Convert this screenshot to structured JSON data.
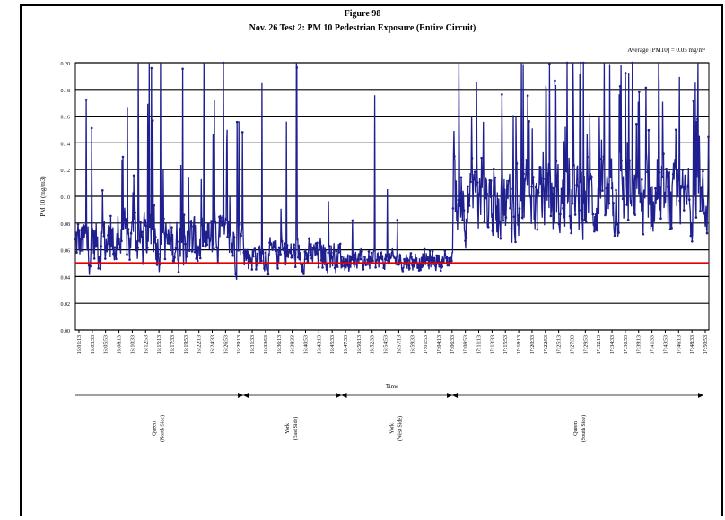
{
  "chart_data": {
    "type": "line",
    "title": "Figure 98",
    "subtitle": "Nov. 26 Test 2: PM 10 Pedestrian Exposure (Entire Circuit)",
    "annotation": "Average [PM10] = 0.05 mg/m³",
    "xlabel": "Time",
    "ylabel": "PM 10 (mg/m3)",
    "ylim": [
      0,
      0.2
    ],
    "yticks": [
      "0.00",
      "0.02",
      "0.04",
      "0.06",
      "0.08",
      "0.10",
      "0.12",
      "0.14",
      "0.16",
      "0.18",
      "0.20"
    ],
    "xticks": [
      "16:01:13",
      "16:03:33",
      "16:05:53",
      "16:08:13",
      "16:10:33",
      "16:12:53",
      "16:15:13",
      "16:17:33",
      "16:19:53",
      "16:22:13",
      "16:24:33",
      "16:26:53",
      "16:29:13",
      "16:31:33",
      "16:33:53",
      "16:36:13",
      "16:38:33",
      "16:40:53",
      "16:43:13",
      "16:45:33",
      "16:47:53",
      "16:50:13",
      "16:52:33",
      "16:54:53",
      "16:57:13",
      "16:59:33",
      "17:01:53",
      "17:04:13",
      "17:06:33",
      "17:08:53",
      "17:11:13",
      "17:13:33",
      "17:15:53",
      "17:18:13",
      "17:20:33",
      "17:22:53",
      "17:25:13",
      "17:27:33",
      "17:29:53",
      "17:32:13",
      "17:34:33",
      "17:36:53",
      "17:39:13",
      "17:41:33",
      "17:43:53",
      "17:46:13",
      "17:48:33",
      "17:50:53"
    ],
    "grid": true,
    "series_color": "#1f1f8f",
    "average_line": {
      "value": 0.05,
      "color": "#e00000"
    },
    "segments": [
      {
        "label": "Queen",
        "sublabel": "(North Side)",
        "share": 0.265
      },
      {
        "label": "York",
        "sublabel": "(East Side)",
        "share": 0.155
      },
      {
        "label": "York",
        "sublabel": "(West Side)",
        "share": 0.175
      },
      {
        "label": "Queen",
        "sublabel": "(South Side)",
        "share": 0.405
      }
    ],
    "regions": [
      {
        "share": 0.265,
        "base": 0.065,
        "noise": 0.03,
        "spike_rate": 0.1
      },
      {
        "share": 0.155,
        "base": 0.056,
        "noise": 0.018,
        "spike_rate": 0.04
      },
      {
        "share": 0.175,
        "base": 0.052,
        "noise": 0.012,
        "spike_rate": 0.02
      },
      {
        "share": 0.405,
        "base": 0.095,
        "noise": 0.04,
        "spike_rate": 0.13
      }
    ]
  }
}
